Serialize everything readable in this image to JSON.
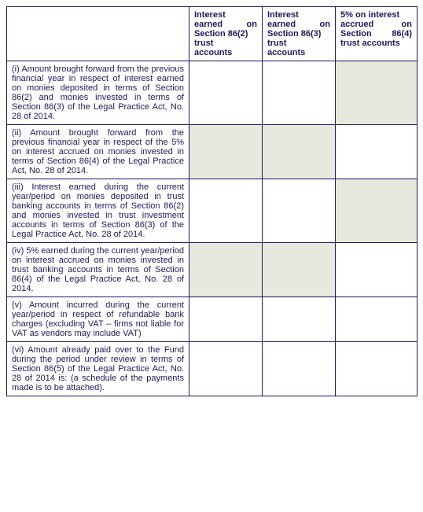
{
  "headers": {
    "blank": "",
    "col1": {
      "l1": "Interest",
      "l2": "earned on",
      "l3": "Section 86(2)",
      "l4": "trust",
      "l5": "accounts"
    },
    "col2": {
      "l1": "Interest",
      "l2": "earned on",
      "l3": "Section 86(3)",
      "l4": "trust",
      "l5": "accounts"
    },
    "col3": {
      "l1": "5% on interest",
      "l2": "accrued on",
      "l3": "Section 86(4)",
      "l4": "trust accounts"
    }
  },
  "rows": [
    {
      "desc": "(i) Amount brought forward from the previous financial year in respect of interest earned on monies deposited in terms of Section 86(2) and monies invested in terms of Section 86(3) of the Legal Practice Act, No. 28 of 2014.",
      "grey": [
        false,
        false,
        true
      ]
    },
    {
      "desc": "(ii) Amount brought forward from the previous financial year in respect of the 5% on interest accrued on monies invested in terms of Section 86(4) of the Legal Practice Act, No. 28 of 2014.",
      "grey": [
        true,
        true,
        false
      ]
    },
    {
      "desc": "(iii) Interest earned during the current year/period on monies deposited in trust banking accounts in terms of Section 86(2) and monies invested in trust investment accounts in terms of Section 86(3) of the Legal Practice Act, No. 28 of 2014.",
      "grey": [
        false,
        false,
        true
      ]
    },
    {
      "desc": "(iv) 5% earned during the current year/period on interest accrued on monies invested in trust banking accounts in terms of Section 86(4) of the Legal Practice Act, No. 28 of 2014.",
      "grey": [
        true,
        true,
        false
      ]
    },
    {
      "desc": "(v) Amount incurred during the current year/period in respect of refundable bank charges (excluding VAT – firms not liable for VAT as vendors may include VAT)",
      "grey": [
        false,
        false,
        false
      ]
    },
    {
      "desc": "(vi) Amount already paid over to the Fund during the period under review in terms of Section 86(5) of the Legal Practice Act, No. 28 of 2014 is: (a schedule of the payments made is to be attached).",
      "grey": [
        false,
        false,
        false
      ]
    }
  ]
}
